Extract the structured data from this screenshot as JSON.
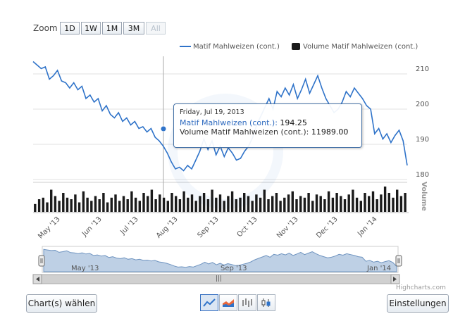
{
  "zoom": {
    "label": "Zoom",
    "buttons": [
      "1D",
      "1W",
      "1M",
      "3M",
      "All"
    ],
    "disabled": "All"
  },
  "legend": {
    "series1": "Matif Mahlweizen (cont.)",
    "series2": "Volume Matif Mahlweizen (cont.)"
  },
  "colors": {
    "line": "#2f73c9",
    "volume": "#1a1a1a",
    "tooltip_border": "#4572a7",
    "navigator_fill": "#a8c0dc"
  },
  "y_axis": {
    "ticks": [
      "210",
      "200",
      "190",
      "180"
    ]
  },
  "volume_axis": {
    "label": "Volume"
  },
  "x_axis": {
    "ticks": [
      "May '13",
      "Jun '13",
      "Jul '13",
      "Aug '13",
      "Sep '13",
      "Oct '13",
      "Nov '13",
      "Dec '13",
      "Jan '14"
    ]
  },
  "tooltip": {
    "date": "Friday, Jul 19, 2013",
    "line1_label": "Matif Mahlweizen (cont.):",
    "line1_value": "194.25",
    "line2_label": "Volume Matif Mahlweizen (cont.):",
    "line2_value": "11989.00"
  },
  "navigator": {
    "labels": [
      "May '13",
      "Sep '13",
      "Jan '14"
    ]
  },
  "scrollbar_grip": "|||",
  "credit": "Highcharts.com",
  "buttons": {
    "charts": "Chart(s) wählen",
    "settings": "Einstellungen"
  },
  "chart_type_icons": [
    "line-chart-icon",
    "area-chart-icon",
    "ohlc-chart-icon",
    "candlestick-chart-icon"
  ],
  "chart_data": {
    "type": "line",
    "series": [
      {
        "name": "Matif Mahlweizen (cont.)",
        "values": [
          213.5,
          212.5,
          211.5,
          212,
          208.5,
          209.5,
          211,
          208,
          207.5,
          206,
          207.5,
          205.5,
          206.5,
          203,
          204,
          202,
          203,
          199.5,
          201,
          198.5,
          197.5,
          199,
          196.5,
          197.5,
          195.5,
          196.5,
          194.5,
          195,
          193.5,
          194.5,
          192,
          191,
          189.5,
          187.5,
          185,
          183,
          183.5,
          182.5,
          184,
          183,
          185.5,
          188,
          191.5,
          188.5,
          191,
          187,
          189.5,
          186.5,
          189,
          187.5,
          185.5,
          186,
          188,
          189.5,
          192,
          195.5,
          198,
          200.5,
          203,
          200,
          205,
          203.5,
          206,
          204,
          207,
          203,
          205.5,
          208.5,
          204.5,
          207,
          209.5,
          206,
          203,
          201,
          199,
          200,
          202,
          205,
          203.5,
          206,
          204.5,
          203,
          201,
          200,
          193,
          194.5,
          191.5,
          193,
          190.5,
          192.5,
          194,
          191,
          184
        ]
      },
      {
        "name": "Volume Matif Mahlweizen (cont.)",
        "values": [
          5,
          8,
          9,
          6,
          14,
          10,
          7,
          12,
          9,
          8,
          11,
          6,
          13,
          9,
          7,
          10,
          8,
          12,
          6,
          9,
          11,
          7,
          10,
          8,
          13,
          9,
          7,
          12,
          10,
          14,
          8,
          11,
          9,
          7,
          12,
          10,
          8,
          13,
          9,
          11,
          7,
          10,
          12,
          8,
          14,
          9,
          11,
          7,
          10,
          13,
          8,
          9,
          12,
          10,
          7,
          11,
          9,
          14,
          8,
          10,
          12,
          7,
          9,
          11,
          13,
          8,
          10,
          9,
          12,
          7,
          11,
          10,
          8,
          13,
          9,
          12,
          10,
          8,
          11,
          14,
          9,
          7,
          12,
          10,
          13,
          8,
          11,
          16,
          12,
          9,
          14,
          10,
          12
        ]
      }
    ],
    "y_range": [
      180,
      215
    ],
    "ylabel_right": "Volume",
    "legend_placement": "top-right",
    "grid": true
  }
}
